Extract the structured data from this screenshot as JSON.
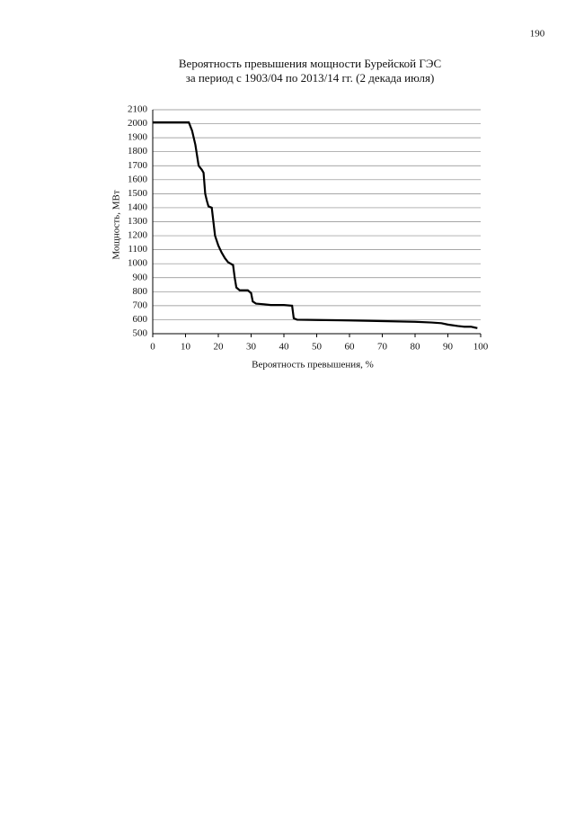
{
  "page_number": "190",
  "chart_data": {
    "type": "line",
    "title": [
      "Вероятность превышения мощности Бурейской ГЭС",
      "за период с 1903/04 по 2013/14 гг. (2 декада июля)"
    ],
    "x_label": "Вероятность превышения, %",
    "y_label": "Мощность, МВт",
    "xlim": [
      0,
      100
    ],
    "xticks": [
      0,
      10,
      20,
      30,
      40,
      50,
      60,
      70,
      80,
      90,
      100
    ],
    "ylim": [
      500,
      2100
    ],
    "yticks": [
      500,
      600,
      700,
      800,
      900,
      1000,
      1100,
      1200,
      1300,
      1400,
      1500,
      1600,
      1700,
      1800,
      1900,
      2000,
      2100
    ],
    "grid": true,
    "series": [
      {
        "color": "#000000",
        "x": [
          0,
          11,
          12,
          13,
          14,
          15,
          15.5,
          16,
          16.5,
          17,
          18,
          18.5,
          19,
          20,
          21,
          22,
          23,
          24.5,
          25,
          25.5,
          26.5,
          29,
          30,
          30.5,
          31.5,
          34,
          36,
          40,
          42.5,
          43,
          44,
          50,
          60,
          70,
          80,
          85,
          88,
          90,
          93,
          95,
          97,
          98,
          99
        ],
        "values": [
          2010,
          2010,
          1950,
          1850,
          1700,
          1670,
          1650,
          1500,
          1450,
          1410,
          1400,
          1300,
          1200,
          1130,
          1080,
          1040,
          1010,
          990,
          900,
          830,
          810,
          810,
          790,
          730,
          715,
          710,
          705,
          705,
          700,
          610,
          600,
          598,
          595,
          590,
          585,
          580,
          575,
          565,
          555,
          550,
          550,
          545,
          540
        ]
      }
    ]
  }
}
